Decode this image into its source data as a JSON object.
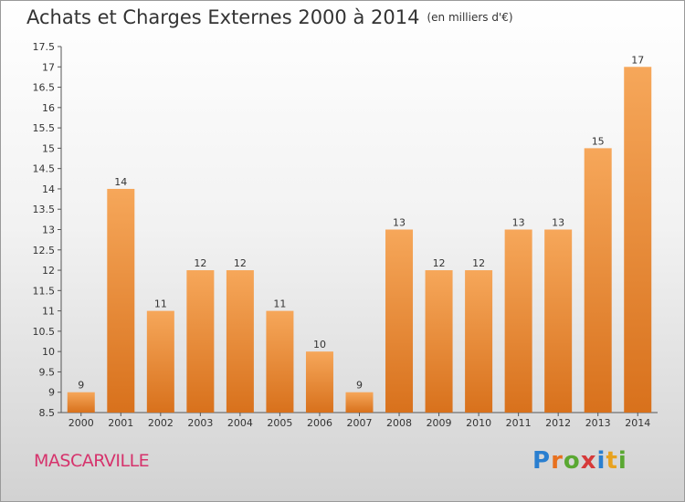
{
  "header": {
    "title": "Achats et Charges Externes 2000 à 2014",
    "unit": "(en milliers d'€)"
  },
  "commune": "MASCARVILLE",
  "logo": {
    "text": "Proxiti",
    "letters": [
      {
        "ch": "P",
        "color": "#2a7fd0"
      },
      {
        "ch": "r",
        "color": "#e8711f"
      },
      {
        "ch": "o",
        "color": "#5aa832"
      },
      {
        "ch": "x",
        "color": "#d63a3a"
      },
      {
        "ch": "i",
        "color": "#2a7fd0"
      },
      {
        "ch": "t",
        "color": "#e8a21f"
      },
      {
        "ch": "i",
        "color": "#5aa832"
      }
    ]
  },
  "chart_data": {
    "type": "bar",
    "categories": [
      "2000",
      "2001",
      "2002",
      "2003",
      "2004",
      "2005",
      "2006",
      "2007",
      "2008",
      "2009",
      "2010",
      "2011",
      "2012",
      "2013",
      "2014"
    ],
    "values": [
      9,
      14,
      11,
      12,
      12,
      11,
      10,
      9,
      13,
      12,
      12,
      13,
      13,
      15,
      17
    ],
    "title": "Achats et Charges Externes 2000 à 2014",
    "xlabel": "",
    "ylabel": "",
    "ylim": [
      8.5,
      17.5
    ],
    "yticks": [
      "8.5",
      "9",
      "9.5",
      "10",
      "10.5",
      "11",
      "11.5",
      "12",
      "12.5",
      "13",
      "13.5",
      "14",
      "14.5",
      "15",
      "15.5",
      "16",
      "16.5",
      "17",
      "17.5"
    ],
    "grid": false,
    "bar_color": "#f0923a"
  }
}
